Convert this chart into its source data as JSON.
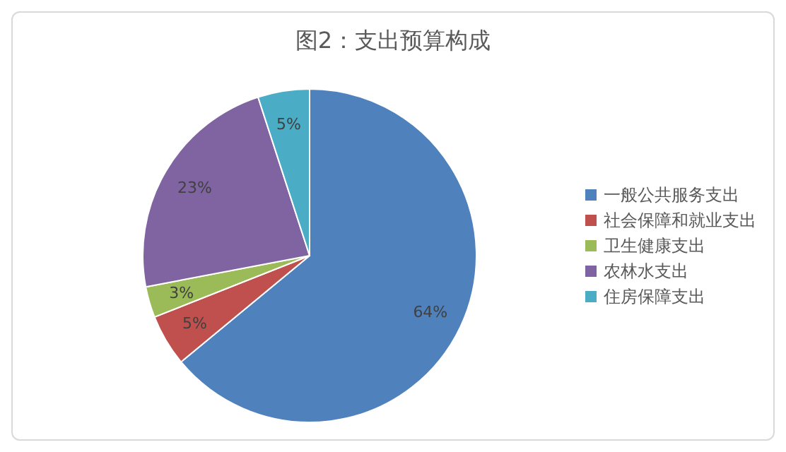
{
  "chart_data": {
    "type": "pie",
    "title": "图2：支出预算构成",
    "categories": [
      "一般公共服务支出",
      "社会保障和就业支出",
      "卫生健康支出",
      "农林水支出",
      "住房保障支出"
    ],
    "values": [
      64,
      5,
      3,
      23,
      5
    ],
    "colors": [
      "#4f81bd",
      "#c0504d",
      "#9bbb59",
      "#8064a2",
      "#4bacc6"
    ],
    "value_labels": [
      "64%",
      "5%",
      "3%",
      "23%",
      "5%"
    ],
    "legend": "right"
  }
}
